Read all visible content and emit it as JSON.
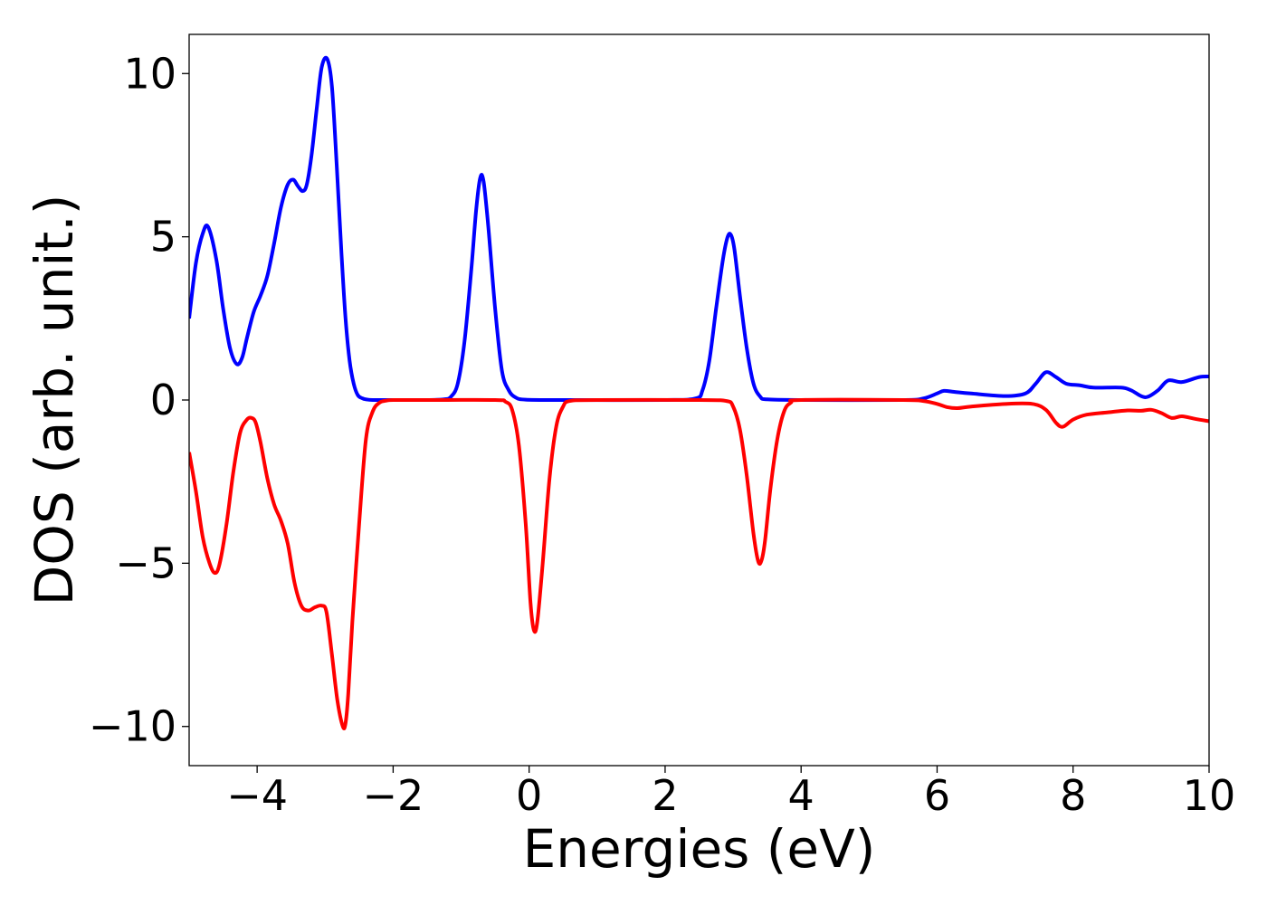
{
  "chart_data": {
    "type": "line",
    "xlabel": "Energies (eV)",
    "ylabel": "DOS (arb. unit.)",
    "xlim": [
      -5,
      10
    ],
    "ylim": [
      -11.2,
      11.2
    ],
    "grid": false,
    "xticks": [
      -4,
      -2,
      0,
      2,
      4,
      6,
      8,
      10
    ],
    "yticks": [
      -10,
      -5,
      0,
      5,
      10
    ],
    "xtick_labels": [
      "−4",
      "−2",
      "0",
      "2",
      "4",
      "6",
      "8",
      "10"
    ],
    "ytick_labels": [
      "−10",
      "−5",
      "0",
      "5",
      "10"
    ],
    "series": [
      {
        "color": "#0000ff",
        "x": [
          -5.0,
          -4.9,
          -4.8,
          -4.72,
          -4.6,
          -4.5,
          -4.4,
          -4.3,
          -4.22,
          -4.15,
          -4.05,
          -3.95,
          -3.85,
          -3.75,
          -3.65,
          -3.55,
          -3.47,
          -3.4,
          -3.33,
          -3.27,
          -3.2,
          -3.12,
          -3.05,
          -2.97,
          -2.9,
          -2.83,
          -2.76,
          -2.7,
          -2.64,
          -2.58,
          -2.52,
          -2.45,
          -2.4,
          -2.3,
          -2.0,
          -1.5,
          -1.25,
          -1.15,
          -1.05,
          -0.95,
          -0.85,
          -0.78,
          -0.72,
          -0.67,
          -0.6,
          -0.5,
          -0.4,
          -0.3,
          -0.2,
          -0.05,
          0.5,
          2.0,
          2.45,
          2.55,
          2.65,
          2.75,
          2.85,
          2.92,
          2.97,
          3.02,
          3.1,
          3.2,
          3.3,
          3.4,
          3.5,
          4.0,
          5.5,
          5.8,
          6.0,
          6.1,
          6.25,
          6.5,
          7.0,
          7.3,
          7.45,
          7.6,
          7.75,
          7.9,
          8.1,
          8.3,
          8.7,
          8.85,
          9.0,
          9.1,
          9.25,
          9.4,
          9.6,
          9.85,
          10.0
        ],
        "y": [
          2.5,
          4.2,
          5.1,
          5.3,
          4.3,
          2.8,
          1.6,
          1.1,
          1.3,
          1.9,
          2.7,
          3.2,
          3.8,
          4.8,
          5.9,
          6.6,
          6.75,
          6.55,
          6.4,
          6.6,
          7.5,
          9.0,
          10.2,
          10.45,
          9.6,
          7.2,
          4.5,
          2.5,
          1.2,
          0.5,
          0.15,
          0.05,
          0.02,
          0.0,
          0.0,
          0.0,
          0.02,
          0.1,
          0.5,
          1.8,
          4.0,
          5.8,
          6.8,
          6.7,
          5.3,
          2.8,
          0.9,
          0.3,
          0.08,
          0.01,
          0.0,
          0.0,
          0.05,
          0.3,
          1.2,
          2.8,
          4.3,
          5.0,
          5.05,
          4.6,
          3.2,
          1.6,
          0.5,
          0.1,
          0.02,
          0.0,
          0.0,
          0.05,
          0.2,
          0.28,
          0.25,
          0.2,
          0.12,
          0.2,
          0.5,
          0.85,
          0.7,
          0.5,
          0.45,
          0.38,
          0.38,
          0.3,
          0.12,
          0.1,
          0.3,
          0.6,
          0.55,
          0.7,
          0.72
        ]
      },
      {
        "color": "#ff0000",
        "x": [
          -5.0,
          -4.9,
          -4.8,
          -4.7,
          -4.62,
          -4.55,
          -4.45,
          -4.35,
          -4.25,
          -4.15,
          -4.08,
          -4.02,
          -3.95,
          -3.85,
          -3.75,
          -3.65,
          -3.55,
          -3.45,
          -3.35,
          -3.25,
          -3.15,
          -3.05,
          -2.98,
          -2.9,
          -2.82,
          -2.74,
          -2.7,
          -2.66,
          -2.6,
          -2.5,
          -2.4,
          -2.3,
          -2.2,
          -2.1,
          -2.0,
          -1.5,
          -0.5,
          -0.35,
          -0.25,
          -0.15,
          -0.05,
          0.02,
          0.07,
          0.12,
          0.2,
          0.3,
          0.4,
          0.5,
          0.6,
          1.0,
          2.5,
          2.9,
          3.0,
          3.1,
          3.2,
          3.3,
          3.37,
          3.42,
          3.47,
          3.55,
          3.65,
          3.75,
          3.85,
          4.0,
          5.5,
          5.8,
          6.0,
          6.15,
          6.3,
          6.5,
          7.0,
          7.4,
          7.6,
          7.75,
          7.85,
          8.0,
          8.2,
          8.5,
          8.8,
          9.0,
          9.15,
          9.3,
          9.45,
          9.6,
          9.8,
          10.0
        ],
        "y": [
          -1.6,
          -2.8,
          -4.2,
          -5.0,
          -5.3,
          -5.0,
          -3.8,
          -2.2,
          -1.0,
          -0.6,
          -0.55,
          -0.7,
          -1.3,
          -2.4,
          -3.2,
          -3.7,
          -4.4,
          -5.6,
          -6.3,
          -6.45,
          -6.35,
          -6.3,
          -6.5,
          -7.8,
          -9.2,
          -10.0,
          -9.9,
          -9.0,
          -6.8,
          -3.8,
          -1.2,
          -0.35,
          -0.08,
          -0.02,
          0.0,
          0.0,
          0.0,
          -0.05,
          -0.3,
          -1.4,
          -3.8,
          -6.2,
          -7.05,
          -6.8,
          -5.0,
          -2.4,
          -0.8,
          -0.2,
          -0.03,
          0.0,
          0.0,
          -0.03,
          -0.2,
          -0.9,
          -2.3,
          -4.1,
          -4.95,
          -4.9,
          -4.3,
          -2.7,
          -1.2,
          -0.35,
          -0.08,
          0.0,
          0.0,
          -0.03,
          -0.12,
          -0.22,
          -0.25,
          -0.2,
          -0.12,
          -0.12,
          -0.3,
          -0.7,
          -0.82,
          -0.6,
          -0.45,
          -0.38,
          -0.32,
          -0.33,
          -0.3,
          -0.4,
          -0.55,
          -0.5,
          -0.58,
          -0.65
        ]
      }
    ]
  }
}
